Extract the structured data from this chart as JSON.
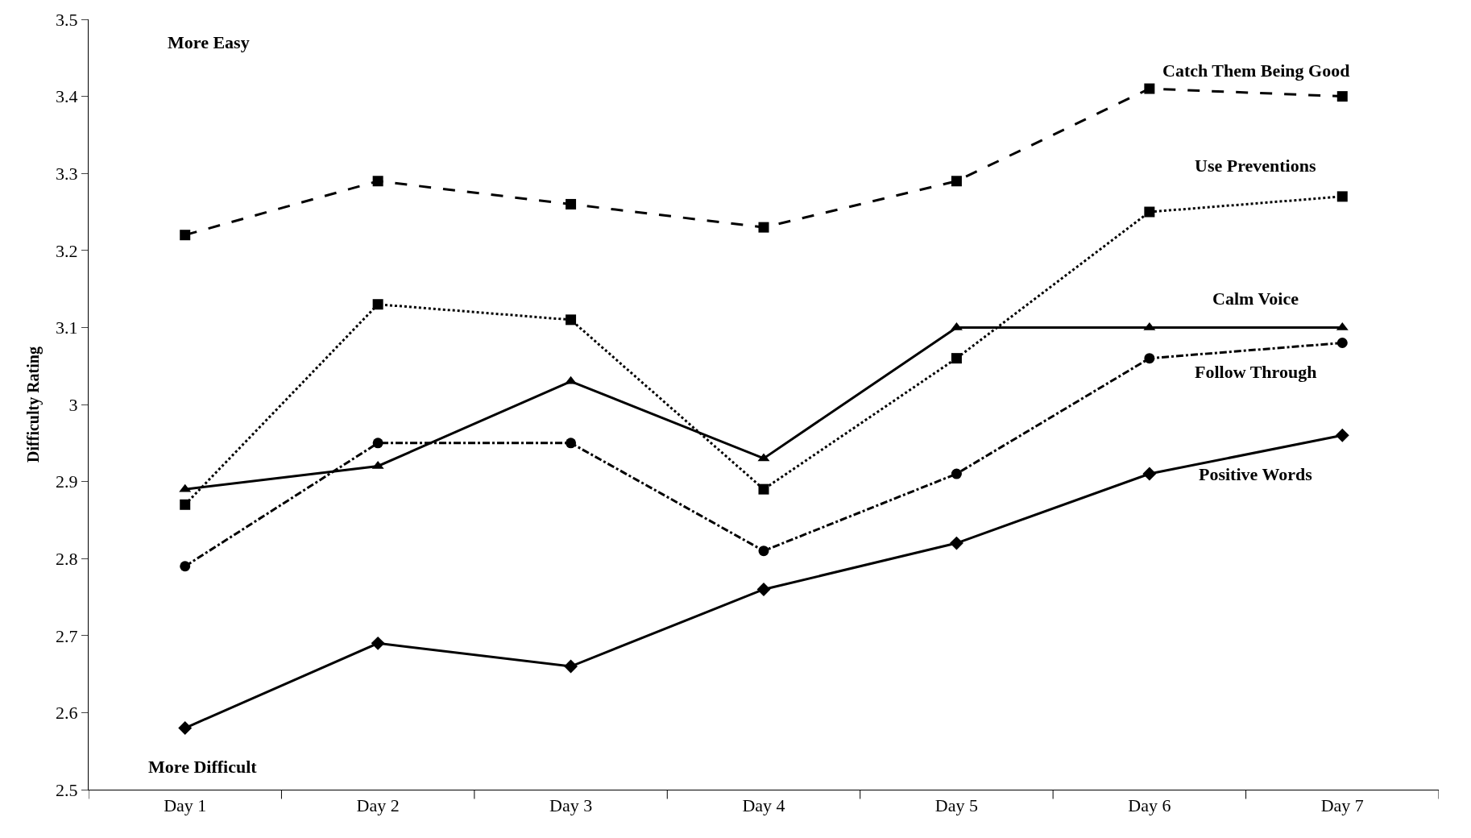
{
  "chart_data": {
    "type": "line",
    "ylabel": "Difficulty Rating",
    "categories": [
      "Day 1",
      "Day 2",
      "Day 3",
      "Day 4",
      "Day 5",
      "Day 6",
      "Day 7"
    ],
    "series": [
      {
        "name": "Catch Them Being Good",
        "color": "#000000",
        "marker": "square",
        "line_style": "dashed",
        "values": [
          3.22,
          3.29,
          3.26,
          3.23,
          3.29,
          3.41,
          3.4
        ]
      },
      {
        "name": "Use Preventions",
        "color": "#000000",
        "marker": "square",
        "line_style": "dotted",
        "values": [
          2.87,
          3.13,
          3.11,
          2.89,
          3.06,
          3.25,
          3.27
        ]
      },
      {
        "name": "Calm Voice",
        "color": "#000000",
        "marker": "triangle",
        "line_style": "solid",
        "values": [
          2.89,
          2.92,
          3.03,
          2.93,
          3.1,
          3.1,
          3.1
        ]
      },
      {
        "name": "Follow Through",
        "color": "#000000",
        "marker": "circle",
        "line_style": "dashdot",
        "values": [
          2.79,
          2.95,
          2.95,
          2.81,
          2.91,
          3.06,
          3.08
        ]
      },
      {
        "name": "Positive Words",
        "color": "#000000",
        "marker": "diamond",
        "line_style": "solid",
        "values": [
          2.58,
          2.69,
          2.66,
          2.76,
          2.82,
          2.91,
          2.96
        ]
      }
    ],
    "annotations": [
      "More Easy",
      "More Difficult"
    ],
    "ylim": [
      2.5,
      3.5
    ],
    "yticks": [
      2.5,
      2.6,
      2.7,
      2.8,
      2.9,
      3,
      3.1,
      3.2,
      3.3,
      3.4,
      3.5
    ],
    "grid": false,
    "legend": false
  }
}
